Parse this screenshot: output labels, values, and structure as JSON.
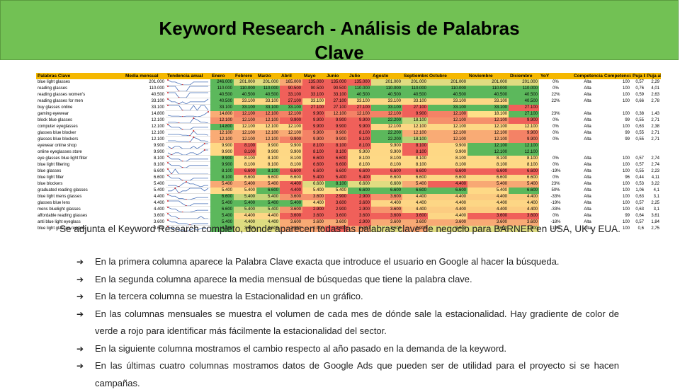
{
  "header": {
    "title_line1": "Keyword Research - Análisis de Palabras",
    "title_line2": "Clave"
  },
  "sheet": {
    "columns": [
      "Palabras Clave",
      "Media mensual",
      "Tendencia anual",
      "Enero",
      "Febrero",
      "Marzo",
      "Abril",
      "Mayo",
      "Junio",
      "Julio",
      "Agosto",
      "Septiembre",
      "Octubre",
      "Noviembre",
      "Diciembre",
      "YoY",
      "Competencia",
      "Competencia",
      "Puja baja",
      "Puja alta"
    ],
    "rows": [
      {
        "kw": "blue light glasses",
        "avg": "201.000",
        "m": [
          "246.000",
          "201.000",
          "201.000",
          "165.000",
          "135.000",
          "135.000",
          "135.000",
          "201.000",
          "201.000",
          "201.000",
          "201.000",
          "201.000"
        ],
        "yoy": "0%",
        "comp": "Alta",
        "idx": "100",
        "low": "0,57",
        "high": "2,29"
      },
      {
        "kw": "reading glasses",
        "avg": "110.000",
        "m": [
          "110.000",
          "110.000",
          "110.000",
          "90.500",
          "90.500",
          "90.500",
          "110.000",
          "110.000",
          "110.000",
          "110.000",
          "110.000",
          "110.000"
        ],
        "yoy": "0%",
        "comp": "Alta",
        "idx": "100",
        "low": "0,76",
        "high": "4,01"
      },
      {
        "kw": "reading glasses women's",
        "avg": "40.500",
        "m": [
          "40.500",
          "40.500",
          "40.500",
          "33.100",
          "33.100",
          "33.100",
          "40.500",
          "40.500",
          "40.500",
          "40.500",
          "40.500",
          "40.500"
        ],
        "yoy": "22%",
        "comp": "Alta",
        "idx": "100",
        "low": "0,59",
        "high": "2,63"
      },
      {
        "kw": "reading glasses for men",
        "avg": "33.100",
        "m": [
          "40.500",
          "33.100",
          "33.100",
          "27.100",
          "33.100",
          "27.100",
          "33.100",
          "33.100",
          "33.100",
          "33.100",
          "33.100",
          "40.500"
        ],
        "yoy": "22%",
        "comp": "Alta",
        "idx": "100",
        "low": "0,66",
        "high": "2,78"
      },
      {
        "kw": "buy glasses online",
        "avg": "33.100",
        "m": [
          "33.100",
          "33.100",
          "33.100",
          "33.100",
          "27.100",
          "27.100",
          "27.100",
          "33.100",
          "27.100",
          "33.100",
          "33.100",
          "27.100"
        ],
        "yoy": "",
        "comp": "",
        "idx": "",
        "low": "",
        "high": ""
      },
      {
        "kw": "gaming eyewear",
        "avg": "14.800",
        "m": [
          "14.800",
          "12.100",
          "12.100",
          "12.100",
          "9.900",
          "12.100",
          "12.100",
          "12.100",
          "9.900",
          "12.100",
          "18.100",
          "27.100"
        ],
        "yoy": "23%",
        "comp": "Alta",
        "idx": "100",
        "low": "0,38",
        "high": "1,43"
      },
      {
        "kw": "block blue glasses",
        "avg": "12.100",
        "m": [
          "12.100",
          "12.100",
          "12.100",
          "9.900",
          "9.900",
          "9.900",
          "9.900",
          "22.200",
          "18.100",
          "12.100",
          "12.100",
          "9.900"
        ],
        "yoy": "0%",
        "comp": "Alta",
        "idx": "99",
        "low": "0,55",
        "high": "2,71"
      },
      {
        "kw": "computer eyeglasses",
        "avg": "12.100",
        "m": [
          "14.800",
          "12.100",
          "12.100",
          "12.100",
          "9.900",
          "9.900",
          "9.900",
          "12.100",
          "12.100",
          "12.100",
          "12.100",
          "12.100"
        ],
        "yoy": "0%",
        "comp": "Alta",
        "idx": "100",
        "low": "0,63",
        "high": "2,38"
      },
      {
        "kw": "glasses blue blocker",
        "avg": "12.100",
        "m": [
          "12.100",
          "12.100",
          "12.100",
          "12.100",
          "9.900",
          "9.900",
          "8.100",
          "22.200",
          "12.100",
          "12.100",
          "12.100",
          "9.900"
        ],
        "yoy": "0%",
        "comp": "Alta",
        "idx": "99",
        "low": "0,55",
        "high": "2,71"
      },
      {
        "kw": "glasses blue blockers",
        "avg": "12.100",
        "m": [
          "12.100",
          "12.100",
          "12.100",
          "9.900",
          "9.900",
          "9.900",
          "8.100",
          "22.200",
          "18.100",
          "12.100",
          "12.100",
          "9.900"
        ],
        "yoy": "0%",
        "comp": "Alta",
        "idx": "99",
        "low": "0,55",
        "high": "2,71"
      },
      {
        "kw": "eyewear online shop",
        "avg": "9.900",
        "m": [
          "9.900",
          "8.100",
          "9.900",
          "9.900",
          "8.100",
          "8.100",
          "8.100",
          "9.900",
          "8.100",
          "9.900",
          "12.100",
          "12.100"
        ],
        "yoy": "",
        "comp": "",
        "idx": "",
        "low": "",
        "high": ""
      },
      {
        "kw": "online eyeglasses store",
        "avg": "9.900",
        "m": [
          "9.900",
          "8.100",
          "9.900",
          "9.900",
          "8.100",
          "8.100",
          "9.900",
          "9.900",
          "8.100",
          "9.900",
          "12.100",
          "12.100"
        ],
        "yoy": "",
        "comp": "",
        "idx": "",
        "low": "",
        "high": ""
      },
      {
        "kw": "eye glasses blue light filter",
        "avg": "8.100",
        "m": [
          "9.900",
          "8.100",
          "8.100",
          "8.100",
          "6.600",
          "6.600",
          "8.100",
          "8.100",
          "8.100",
          "8.100",
          "8.100",
          "8.100"
        ],
        "yoy": "0%",
        "comp": "Alta",
        "idx": "100",
        "low": "0,57",
        "high": "2,74"
      },
      {
        "kw": "blue light filtering",
        "avg": "8.100",
        "m": [
          "9.900",
          "8.100",
          "8.100",
          "8.100",
          "6.600",
          "6.600",
          "8.100",
          "8.100",
          "8.100",
          "8.100",
          "8.100",
          "8.100"
        ],
        "yoy": "0%",
        "comp": "Alta",
        "idx": "100",
        "low": "0,57",
        "high": "2,74"
      },
      {
        "kw": "blue glasses",
        "avg": "6.600",
        "m": [
          "8.100",
          "6.600",
          "8.100",
          "6.600",
          "6.600",
          "6.600",
          "6.600",
          "6.600",
          "6.600",
          "6.600",
          "6.600",
          "6.600"
        ],
        "yoy": "-19%",
        "comp": "Alta",
        "idx": "100",
        "low": "0,55",
        "high": "2,23"
      },
      {
        "kw": "blue light filter",
        "avg": "6.600",
        "m": [
          "8.100",
          "6.600",
          "6.600",
          "6.600",
          "5.400",
          "5.400",
          "5.400",
          "6.600",
          "6.600",
          "6.600",
          "6.600",
          "6.600"
        ],
        "yoy": "0%",
        "comp": "Alta",
        "idx": "96",
        "low": "0,44",
        "high": "4,11"
      },
      {
        "kw": "blue blockers",
        "avg": "5.400",
        "m": [
          "5.400",
          "5.400",
          "5.400",
          "4.400",
          "6.600",
          "8.100",
          "6.600",
          "6.600",
          "5.400",
          "4.400",
          "5.400",
          "5.400"
        ],
        "yoy": "23%",
        "comp": "Alta",
        "idx": "100",
        "low": "0,53",
        "high": "3,22"
      },
      {
        "kw": "graduated reading glasses",
        "avg": "5.400",
        "m": [
          "5.400",
          "5.400",
          "6.600",
          "4.400",
          "5.400",
          "5.400",
          "6.600",
          "6.600",
          "6.600",
          "6.600",
          "5.400",
          "6.600"
        ],
        "yoy": "50%",
        "comp": "Alta",
        "idx": "100",
        "low": "1,06",
        "high": "4,1"
      },
      {
        "kw": "blue light mens glasses",
        "avg": "4.400",
        "m": [
          "6.600",
          "5.400",
          "5.400",
          "3.600",
          "3.600",
          "2.900",
          "2.900",
          "3.600",
          "4.400",
          "4.400",
          "4.400",
          "4.400"
        ],
        "yoy": "-33%",
        "comp": "Alta",
        "idx": "100",
        "low": "0,63",
        "high": "3,1"
      },
      {
        "kw": "glasses blue lens",
        "avg": "4.400",
        "m": [
          "5.400",
          "5.400",
          "5.400",
          "5.400",
          "4.400",
          "3.600",
          "3.600",
          "4.400",
          "4.400",
          "4.400",
          "4.400",
          "4.400"
        ],
        "yoy": "-19%",
        "comp": "Alta",
        "idx": "100",
        "low": "0,57",
        "high": "2,25"
      },
      {
        "kw": "mens bluelight glasses",
        "avg": "4.400",
        "m": [
          "6.600",
          "5.400",
          "5.400",
          "3.600",
          "2.900",
          "2.900",
          "2.900",
          "3.600",
          "4.400",
          "4.400",
          "4.400",
          "4.400"
        ],
        "yoy": "-33%",
        "comp": "Alta",
        "idx": "100",
        "low": "0,63",
        "high": "3,1"
      },
      {
        "kw": "affordable reading glasses",
        "avg": "3.600",
        "m": [
          "5.400",
          "4.400",
          "4.400",
          "3.600",
          "3.600",
          "3.600",
          "3.600",
          "3.600",
          "3.600",
          "4.400",
          "3.600",
          "3.600"
        ],
        "yoy": "0%",
        "comp": "Alta",
        "idx": "99",
        "low": "0,64",
        "high": "3,61"
      },
      {
        "kw": "anti blue light eyeglass",
        "avg": "3.600",
        "m": [
          "5.400",
          "4.400",
          "4.400",
          "3.600",
          "3.600",
          "3.600",
          "2.900",
          "3.600",
          "3.600",
          "3.600",
          "3.600",
          "3.600"
        ],
        "yoy": "-18%",
        "comp": "Alta",
        "idx": "100",
        "low": "0,57",
        "high": "1,84"
      },
      {
        "kw": "blue light glasses readers",
        "avg": "3.600",
        "m": [
          "4.400",
          "3.600",
          "3.600",
          "2.900",
          "2.900",
          "2.400",
          "2.900",
          "3.600",
          "2.900",
          "3.600",
          "3.600",
          "3.600"
        ],
        "yoy": "-18%",
        "comp": "Alta",
        "idx": "100",
        "low": "0,6",
        "high": "2,75"
      }
    ]
  },
  "intro": "Se adjunta el Keyword Research completo, donde aparecen todas las palabras clave de negocio para BARNER en USA, UK y EUA.",
  "bullets": [
    "En la primera columna aparece la Palabra Clave exacta que introduce el usuario en Google al hacer la búsqueda.",
    "En la segunda columna aparece la media mensual de búsquedas que tiene la palabra clave.",
    "En la tercera columna se muestra la Estacionalidad en un gráfico.",
    "En las columnas mensuales se muestra el volumen de cada mes de dónde sale la estacionalidad. Hay gradiente de color de verde a rojo para identificar más fácilmente la estacionalidad del sector.",
    "En la siguiente columna mostramos el cambio respecto al año pasado en la demanda de la keyword.",
    "En las últimas cuatro columnas mostramos datos de Google Ads que pueden ser de utilidad para el proyecto si se hacen campañas."
  ],
  "bullet_glyph": "➔",
  "colors": {
    "header_bg": "#72c154",
    "sheet_header": "#f5b800",
    "high": "#5cb85c",
    "mid": "#ffe58a",
    "low": "#f0605a"
  }
}
